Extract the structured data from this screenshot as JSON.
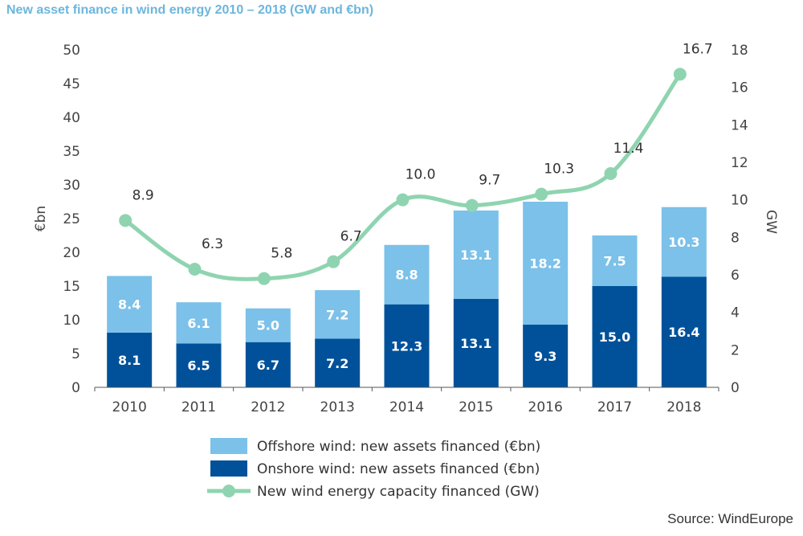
{
  "title": "New asset finance in wind energy 2010 – 2018 (GW and €bn)",
  "source": "Source: WindEurope",
  "colors": {
    "offshore": "#7cc1e9",
    "onshore": "#00519a",
    "line": "#8fd4b0",
    "axis": "#444444"
  },
  "chart_data": {
    "type": "bar",
    "title": "New asset finance in wind energy 2010 – 2018 (GW and €bn)",
    "categories": [
      "2010",
      "2011",
      "2012",
      "2013",
      "2014",
      "2015",
      "2016",
      "2017",
      "2018"
    ],
    "ylabel": "€bn",
    "y2label": "GW",
    "ylim": [
      0,
      50
    ],
    "y2lim": [
      0,
      18
    ],
    "yticks": [
      "0",
      "5",
      "10",
      "15",
      "20",
      "25",
      "30",
      "35",
      "40",
      "45",
      "50"
    ],
    "y2ticks": [
      "0",
      "2",
      "4",
      "6",
      "8",
      "10",
      "12",
      "14",
      "16",
      "18"
    ],
    "stacked": true,
    "series": [
      {
        "name": "Onshore wind: new assets financed (€bn)",
        "type": "bar",
        "axis": "left",
        "values": [
          8.1,
          6.5,
          6.7,
          7.2,
          12.3,
          13.1,
          9.3,
          15.0,
          16.4
        ],
        "labels": [
          "8.1",
          "6.5",
          "6.7",
          "7.2",
          "12.3",
          "13.1",
          "9.3",
          "15.0",
          "16.4"
        ]
      },
      {
        "name": "Offshore wind: new assets financed (€bn)",
        "type": "bar",
        "axis": "left",
        "values": [
          8.4,
          6.1,
          5.0,
          7.2,
          8.8,
          13.1,
          18.2,
          7.5,
          10.3
        ],
        "labels": [
          "8.4",
          "6.1",
          "5.0",
          "7.2",
          "8.8",
          "13.1",
          "18.2",
          "7.5",
          "10.3"
        ]
      },
      {
        "name": "New wind energy capacity financed (GW)",
        "type": "line",
        "axis": "right",
        "values": [
          8.9,
          6.3,
          5.8,
          6.7,
          10.0,
          9.7,
          10.3,
          11.4,
          16.7
        ],
        "labels": [
          "8.9",
          "6.3",
          "5.8",
          "6.7",
          "10.0",
          "9.7",
          "10.3",
          "11.4",
          "16.7"
        ]
      }
    ],
    "legend": {
      "position": "bottom",
      "items": [
        "Offshore wind: new assets financed (€bn)",
        "Onshore wind: new assets financed (€bn)",
        "New wind energy capacity financed (GW)"
      ]
    },
    "grid": false
  }
}
